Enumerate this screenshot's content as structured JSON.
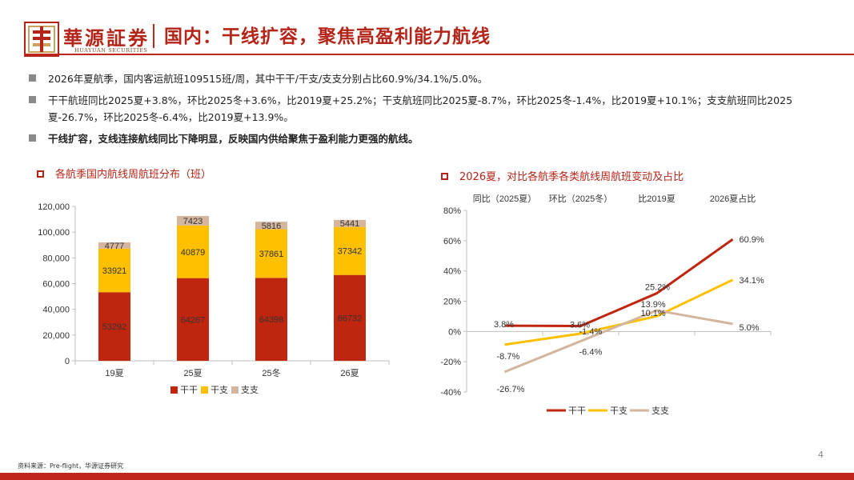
{
  "header": {
    "logo_cn": "華源証券",
    "logo_en": "HUAYUAN SECURITIES",
    "title": "国内：干线扩容，聚焦高盈利能力航线"
  },
  "bullets": [
    "2026年夏航季，国内客运航班109515班/周，其中干干/干支/支支分别占比60.9%/34.1%/5.0%。",
    "干干航班同比2025夏+3.8%，环比2025冬+3.6%，比2019夏+25.2%；干支航班同比2025夏-8.7%，环比2025冬-1.4%，比2019夏+10.1%；支支航班同比2025夏-26.7%，环比2025冬-6.4%，比2019夏+13.9%。",
    "干线扩容，支线连接航线同比下降明显，反映国内供给聚焦于盈利能力更强的航线。"
  ],
  "chart_data": [
    {
      "type": "bar",
      "stacked": true,
      "title": "各航季国内航线周航班分布（班）",
      "categories": [
        "19夏",
        "25夏",
        "25冬",
        "26夏"
      ],
      "series": [
        {
          "name": "干干",
          "values": [
            53292,
            64267,
            64398,
            66732
          ],
          "color": "#c0260f"
        },
        {
          "name": "干支",
          "values": [
            33921,
            40879,
            37861,
            37342
          ],
          "color": "#ffc000"
        },
        {
          "name": "支支",
          "values": [
            4777,
            7423,
            5816,
            5441
          ],
          "color": "#d4b59e"
        }
      ],
      "ylim": [
        0,
        120000
      ],
      "yticks": [
        "0",
        "20,000",
        "40,000",
        "60,000",
        "80,000",
        "100,000",
        "120,000"
      ],
      "legend": "bottom"
    },
    {
      "type": "line",
      "title": "2026夏，对比各航季各类航线周航班变动及占比",
      "categories": [
        "同比（2025夏）",
        "环比（2025冬）",
        "比2019夏",
        "2026夏占比"
      ],
      "series": [
        {
          "name": "干干",
          "values": [
            3.8,
            3.6,
            25.2,
            60.9
          ],
          "labels": [
            "3.8%",
            "3.6%",
            "25.2%",
            "60.9%"
          ],
          "color": "#c0260f"
        },
        {
          "name": "干支",
          "values": [
            -8.7,
            -1.4,
            10.1,
            34.1
          ],
          "labels": [
            "-8.7%",
            "-1.4%",
            "10.1%",
            "34.1%"
          ],
          "color": "#ffc000"
        },
        {
          "name": "支支",
          "values": [
            -26.7,
            -6.4,
            13.9,
            5.0
          ],
          "labels": [
            "-26.7%",
            "-6.4%",
            "13.9%",
            "5.0%"
          ],
          "color": "#d4b59e"
        }
      ],
      "ylim": [
        -40,
        80
      ],
      "yticks": [
        "-40%",
        "-20%",
        "0%",
        "20%",
        "40%",
        "60%",
        "80%"
      ],
      "legend": "bottom"
    }
  ],
  "footer": {
    "source": "资料来源：Pre-flight，华源证券研究",
    "page": "4"
  }
}
